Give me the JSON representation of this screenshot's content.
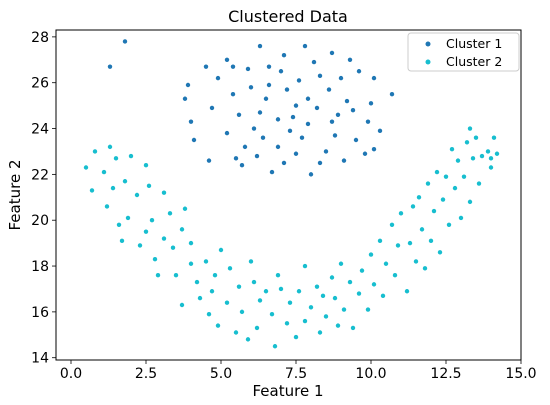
{
  "chart_data": {
    "type": "scatter",
    "title": "Clustered Data",
    "xlabel": "Feature 1",
    "ylabel": "Feature 2",
    "xlim": [
      -0.5,
      15.0
    ],
    "ylim": [
      13.9,
      28.3
    ],
    "xticks": [
      0.0,
      2.5,
      5.0,
      7.5,
      10.0,
      12.5,
      15.0
    ],
    "xtick_labels": [
      "0.0",
      "2.5",
      "5.0",
      "7.5",
      "10.0",
      "12.5",
      "15.0"
    ],
    "yticks": [
      14,
      16,
      18,
      20,
      22,
      24,
      26,
      28
    ],
    "ytick_labels": [
      "14",
      "16",
      "18",
      "20",
      "22",
      "24",
      "26",
      "28"
    ],
    "grid": false,
    "legend_position": "top-right",
    "series": [
      {
        "name": "Cluster 1",
        "color": "#1f77b4",
        "points": [
          [
            1.3,
            26.7
          ],
          [
            1.8,
            27.8
          ],
          [
            3.8,
            25.3
          ],
          [
            3.9,
            25.9
          ],
          [
            4.1,
            23.5
          ],
          [
            4.0,
            24.3
          ],
          [
            4.5,
            26.7
          ],
          [
            4.6,
            22.6
          ],
          [
            4.7,
            24.9
          ],
          [
            4.9,
            26.2
          ],
          [
            5.2,
            27.0
          ],
          [
            5.4,
            26.7
          ],
          [
            5.5,
            22.7
          ],
          [
            5.6,
            24.6
          ],
          [
            6.3,
            27.6
          ],
          [
            6.3,
            24.7
          ],
          [
            6.5,
            25.3
          ],
          [
            6.6,
            26.7
          ],
          [
            7.1,
            27.2
          ],
          [
            7.5,
            22.9
          ],
          [
            7.8,
            27.6
          ],
          [
            7.9,
            24.2
          ],
          [
            8.3,
            26.3
          ],
          [
            8.5,
            23.0
          ],
          [
            8.7,
            27.3
          ],
          [
            8.9,
            24.6
          ],
          [
            9.3,
            27.0
          ],
          [
            9.6,
            26.5
          ],
          [
            9.9,
            24.3
          ],
          [
            10.1,
            26.2
          ],
          [
            10.1,
            23.1
          ],
          [
            10.3,
            23.9
          ],
          [
            10.7,
            25.5
          ],
          [
            5.9,
            26.6
          ],
          [
            6.0,
            25.8
          ],
          [
            6.1,
            24.0
          ],
          [
            6.7,
            22.1
          ],
          [
            6.9,
            23.2
          ],
          [
            7.0,
            26.5
          ],
          [
            7.2,
            25.7
          ],
          [
            7.4,
            24.5
          ],
          [
            7.7,
            23.6
          ],
          [
            7.9,
            25.3
          ],
          [
            8.1,
            26.9
          ],
          [
            8.3,
            22.5
          ],
          [
            8.6,
            25.7
          ],
          [
            8.8,
            23.7
          ],
          [
            9.1,
            22.6
          ],
          [
            9.2,
            25.2
          ],
          [
            9.5,
            23.5
          ],
          [
            9.8,
            22.9
          ],
          [
            5.2,
            23.8
          ],
          [
            5.4,
            25.5
          ],
          [
            5.7,
            22.4
          ],
          [
            5.8,
            23.2
          ],
          [
            6.2,
            22.8
          ],
          [
            6.4,
            23.6
          ],
          [
            6.9,
            24.4
          ],
          [
            7.3,
            23.9
          ],
          [
            7.6,
            26.1
          ],
          [
            8.2,
            24.9
          ],
          [
            8.7,
            24.3
          ],
          [
            9.0,
            26.2
          ],
          [
            9.4,
            24.8
          ],
          [
            10.0,
            25.1
          ],
          [
            6.6,
            25.9
          ],
          [
            7.1,
            22.5
          ],
          [
            8.0,
            22.0
          ],
          [
            7.5,
            25.0
          ]
        ]
      },
      {
        "name": "Cluster 2",
        "color": "#17becf",
        "points": [
          [
            0.5,
            22.3
          ],
          [
            0.8,
            23.0
          ],
          [
            0.7,
            21.3
          ],
          [
            1.1,
            22.1
          ],
          [
            1.3,
            23.2
          ],
          [
            1.2,
            20.6
          ],
          [
            1.4,
            21.4
          ],
          [
            1.5,
            22.7
          ],
          [
            1.6,
            19.8
          ],
          [
            1.7,
            19.1
          ],
          [
            1.8,
            21.7
          ],
          [
            1.9,
            20.1
          ],
          [
            2.0,
            22.8
          ],
          [
            2.2,
            21.1
          ],
          [
            2.3,
            18.9
          ],
          [
            2.5,
            19.5
          ],
          [
            2.5,
            22.4
          ],
          [
            2.6,
            21.5
          ],
          [
            2.7,
            20.0
          ],
          [
            2.8,
            18.3
          ],
          [
            2.9,
            17.6
          ],
          [
            3.1,
            19.2
          ],
          [
            3.1,
            21.2
          ],
          [
            3.3,
            20.3
          ],
          [
            3.4,
            18.8
          ],
          [
            3.5,
            17.6
          ],
          [
            3.7,
            16.3
          ],
          [
            3.7,
            19.6
          ],
          [
            3.8,
            20.5
          ],
          [
            4.0,
            18.1
          ],
          [
            4.0,
            19.0
          ],
          [
            4.2,
            17.3
          ],
          [
            4.3,
            16.6
          ],
          [
            4.5,
            18.2
          ],
          [
            4.6,
            15.9
          ],
          [
            4.7,
            16.9
          ],
          [
            4.8,
            17.6
          ],
          [
            4.9,
            15.4
          ],
          [
            5.0,
            18.7
          ],
          [
            5.2,
            16.4
          ],
          [
            5.3,
            17.9
          ],
          [
            5.5,
            15.1
          ],
          [
            5.6,
            17.1
          ],
          [
            5.7,
            16.0
          ],
          [
            5.9,
            14.8
          ],
          [
            6.0,
            18.2
          ],
          [
            6.1,
            17.3
          ],
          [
            6.2,
            15.3
          ],
          [
            6.3,
            16.5
          ],
          [
            6.5,
            16.9
          ],
          [
            6.7,
            15.9
          ],
          [
            6.8,
            14.5
          ],
          [
            6.9,
            17.6
          ],
          [
            7.0,
            17.0
          ],
          [
            7.2,
            15.5
          ],
          [
            7.3,
            16.4
          ],
          [
            7.5,
            14.9
          ],
          [
            7.6,
            16.9
          ],
          [
            7.8,
            18.0
          ],
          [
            7.8,
            15.6
          ],
          [
            8.0,
            16.2
          ],
          [
            8.2,
            17.1
          ],
          [
            8.3,
            15.1
          ],
          [
            8.4,
            16.7
          ],
          [
            8.5,
            15.8
          ],
          [
            8.7,
            17.5
          ],
          [
            8.8,
            16.6
          ],
          [
            8.9,
            15.4
          ],
          [
            9.0,
            18.1
          ],
          [
            9.1,
            16.1
          ],
          [
            9.3,
            17.3
          ],
          [
            9.4,
            15.3
          ],
          [
            9.6,
            16.8
          ],
          [
            9.7,
            17.8
          ],
          [
            9.9,
            16.1
          ],
          [
            10.0,
            18.5
          ],
          [
            10.1,
            17.2
          ],
          [
            10.3,
            19.1
          ],
          [
            10.4,
            16.7
          ],
          [
            10.5,
            18.1
          ],
          [
            10.7,
            19.8
          ],
          [
            10.8,
            17.6
          ],
          [
            10.9,
            18.9
          ],
          [
            11.0,
            20.3
          ],
          [
            11.2,
            16.9
          ],
          [
            11.3,
            19.0
          ],
          [
            11.4,
            20.6
          ],
          [
            11.5,
            18.2
          ],
          [
            11.6,
            21.0
          ],
          [
            11.7,
            19.6
          ],
          [
            11.8,
            17.9
          ],
          [
            11.9,
            21.6
          ],
          [
            12.0,
            19.1
          ],
          [
            12.1,
            20.4
          ],
          [
            12.2,
            22.1
          ],
          [
            12.3,
            18.6
          ],
          [
            12.4,
            20.9
          ],
          [
            12.5,
            21.9
          ],
          [
            12.6,
            19.8
          ],
          [
            12.7,
            23.1
          ],
          [
            12.8,
            21.4
          ],
          [
            12.9,
            22.6
          ],
          [
            13.0,
            20.1
          ],
          [
            13.1,
            21.9
          ],
          [
            13.2,
            23.4
          ],
          [
            13.3,
            20.8
          ],
          [
            13.3,
            24.0
          ],
          [
            13.4,
            22.7
          ],
          [
            13.5,
            23.6
          ],
          [
            13.6,
            21.6
          ],
          [
            13.7,
            22.8
          ],
          [
            13.9,
            23.0
          ],
          [
            14.0,
            22.3
          ],
          [
            14.1,
            23.6
          ],
          [
            14.2,
            22.9
          ],
          [
            14.0,
            22.7
          ]
        ]
      }
    ]
  }
}
